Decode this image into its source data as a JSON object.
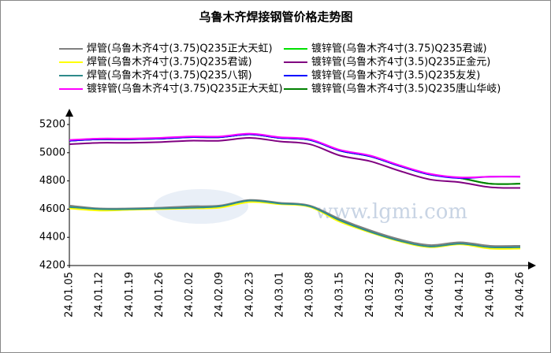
{
  "chart_data": {
    "type": "line",
    "title": "乌鲁木齐焊接钢管价格走势图",
    "watermark": "www.lgmi.com",
    "categories": [
      "24.01.05",
      "24.01.12",
      "24.01.19",
      "24.01.26",
      "24.02.02",
      "24.02.09",
      "24.02.23",
      "24.03.01",
      "24.03.08",
      "24.03.15",
      "24.03.22",
      "24.03.29",
      "24.04.03",
      "24.04.12",
      "24.04.19",
      "24.04.26"
    ],
    "ylim": [
      4200,
      5200
    ],
    "yticks": [
      4200,
      4400,
      4600,
      4800,
      5000,
      5200
    ],
    "grid": false,
    "series": [
      {
        "name": "焊管(乌鲁木齐4寸(3.75)Q235正大天虹)",
        "color": "#808080",
        "values": [
          4625,
          4605,
          4605,
          4610,
          4620,
          4625,
          4665,
          4645,
          4625,
          4530,
          4450,
          4385,
          4345,
          4365,
          4340,
          4340
        ]
      },
      {
        "name": "焊管(乌鲁木齐4寸(3.75)Q235君诚)",
        "color": "#ffff00",
        "values": [
          4605,
          4590,
          4595,
          4600,
          4605,
          4610,
          4650,
          4635,
          4615,
          4510,
          4435,
          4370,
          4330,
          4350,
          4320,
          4320
        ]
      },
      {
        "name": "焊管(乌鲁木齐4寸(3.75)Q235八钢)",
        "color": "#2e8b8b",
        "values": [
          4615,
          4600,
          4600,
          4605,
          4610,
          4620,
          4660,
          4640,
          4620,
          4520,
          4440,
          4375,
          4335,
          4355,
          4330,
          4330
        ]
      },
      {
        "name": "镀锌管(乌鲁木齐4寸(3.75)Q235正大天虹)",
        "color": "#ff00ff",
        "values": [
          5090,
          5100,
          5100,
          5105,
          5115,
          5115,
          5135,
          5110,
          5095,
          5020,
          4980,
          4910,
          4850,
          4825,
          4830,
          4830
        ]
      },
      {
        "name": "镀锌管(乌鲁木齐4寸(3.75)Q235君诚)",
        "color": "#00e000",
        "values": [
          5085,
          5095,
          5095,
          5100,
          5110,
          5110,
          5130,
          5105,
          5090,
          5015,
          4975,
          4905,
          4845,
          4820,
          4780,
          4780
        ]
      },
      {
        "name": "镀锌管(乌鲁木齐4寸(3.5)Q235正金元)",
        "color": "#800080",
        "values": [
          5060,
          5070,
          5070,
          5075,
          5085,
          5085,
          5105,
          5080,
          5060,
          4980,
          4940,
          4870,
          4810,
          4790,
          4755,
          4750
        ]
      },
      {
        "name": "镀锌管(乌鲁木齐4寸(3.5)Q235友发)",
        "color": "#0000ff",
        "values": [
          5085,
          5095,
          5095,
          5100,
          5110,
          5110,
          5130,
          5105,
          5090,
          5015,
          4975,
          4905,
          4845,
          4820,
          4830,
          4830
        ]
      },
      {
        "name": "镀锌管(乌鲁木齐4寸(3.5)Q235唐山华岐)",
        "color": "#008000",
        "values": [
          5085,
          5095,
          5095,
          5100,
          5110,
          5110,
          5130,
          5105,
          5090,
          5015,
          4975,
          4905,
          4845,
          4820,
          4780,
          4780
        ]
      }
    ]
  }
}
